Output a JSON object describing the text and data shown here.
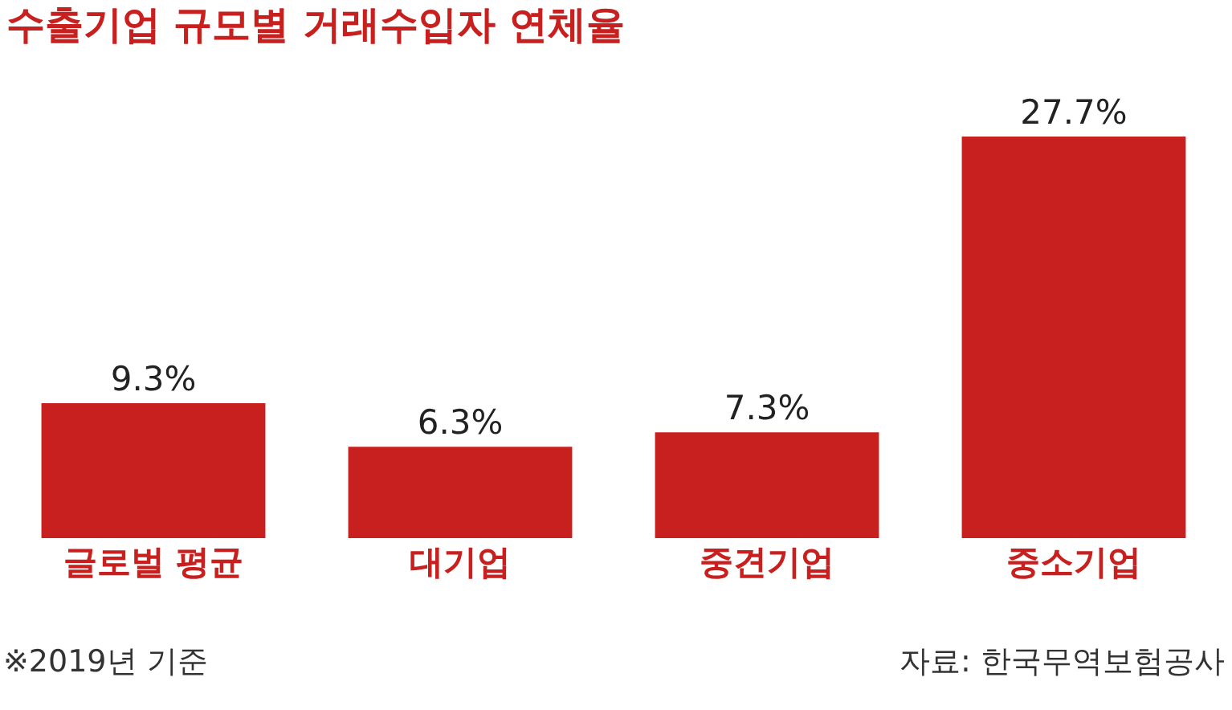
{
  "chart_data": {
    "type": "bar",
    "title": "수출기업 규모별 거래수입자 연체율",
    "categories": [
      "글로벌 평균",
      "대기업",
      "중견기업",
      "중소기업"
    ],
    "values": [
      9.3,
      6.3,
      7.3,
      27.7
    ],
    "color": "#c8201f",
    "value_labels": [
      "9.3%",
      "6.3%",
      "7.3%",
      "27.7%"
    ],
    "annotations": [
      "※2019년 기준",
      "자료: 한국무역보험공사"
    ],
    "legend": false
  }
}
